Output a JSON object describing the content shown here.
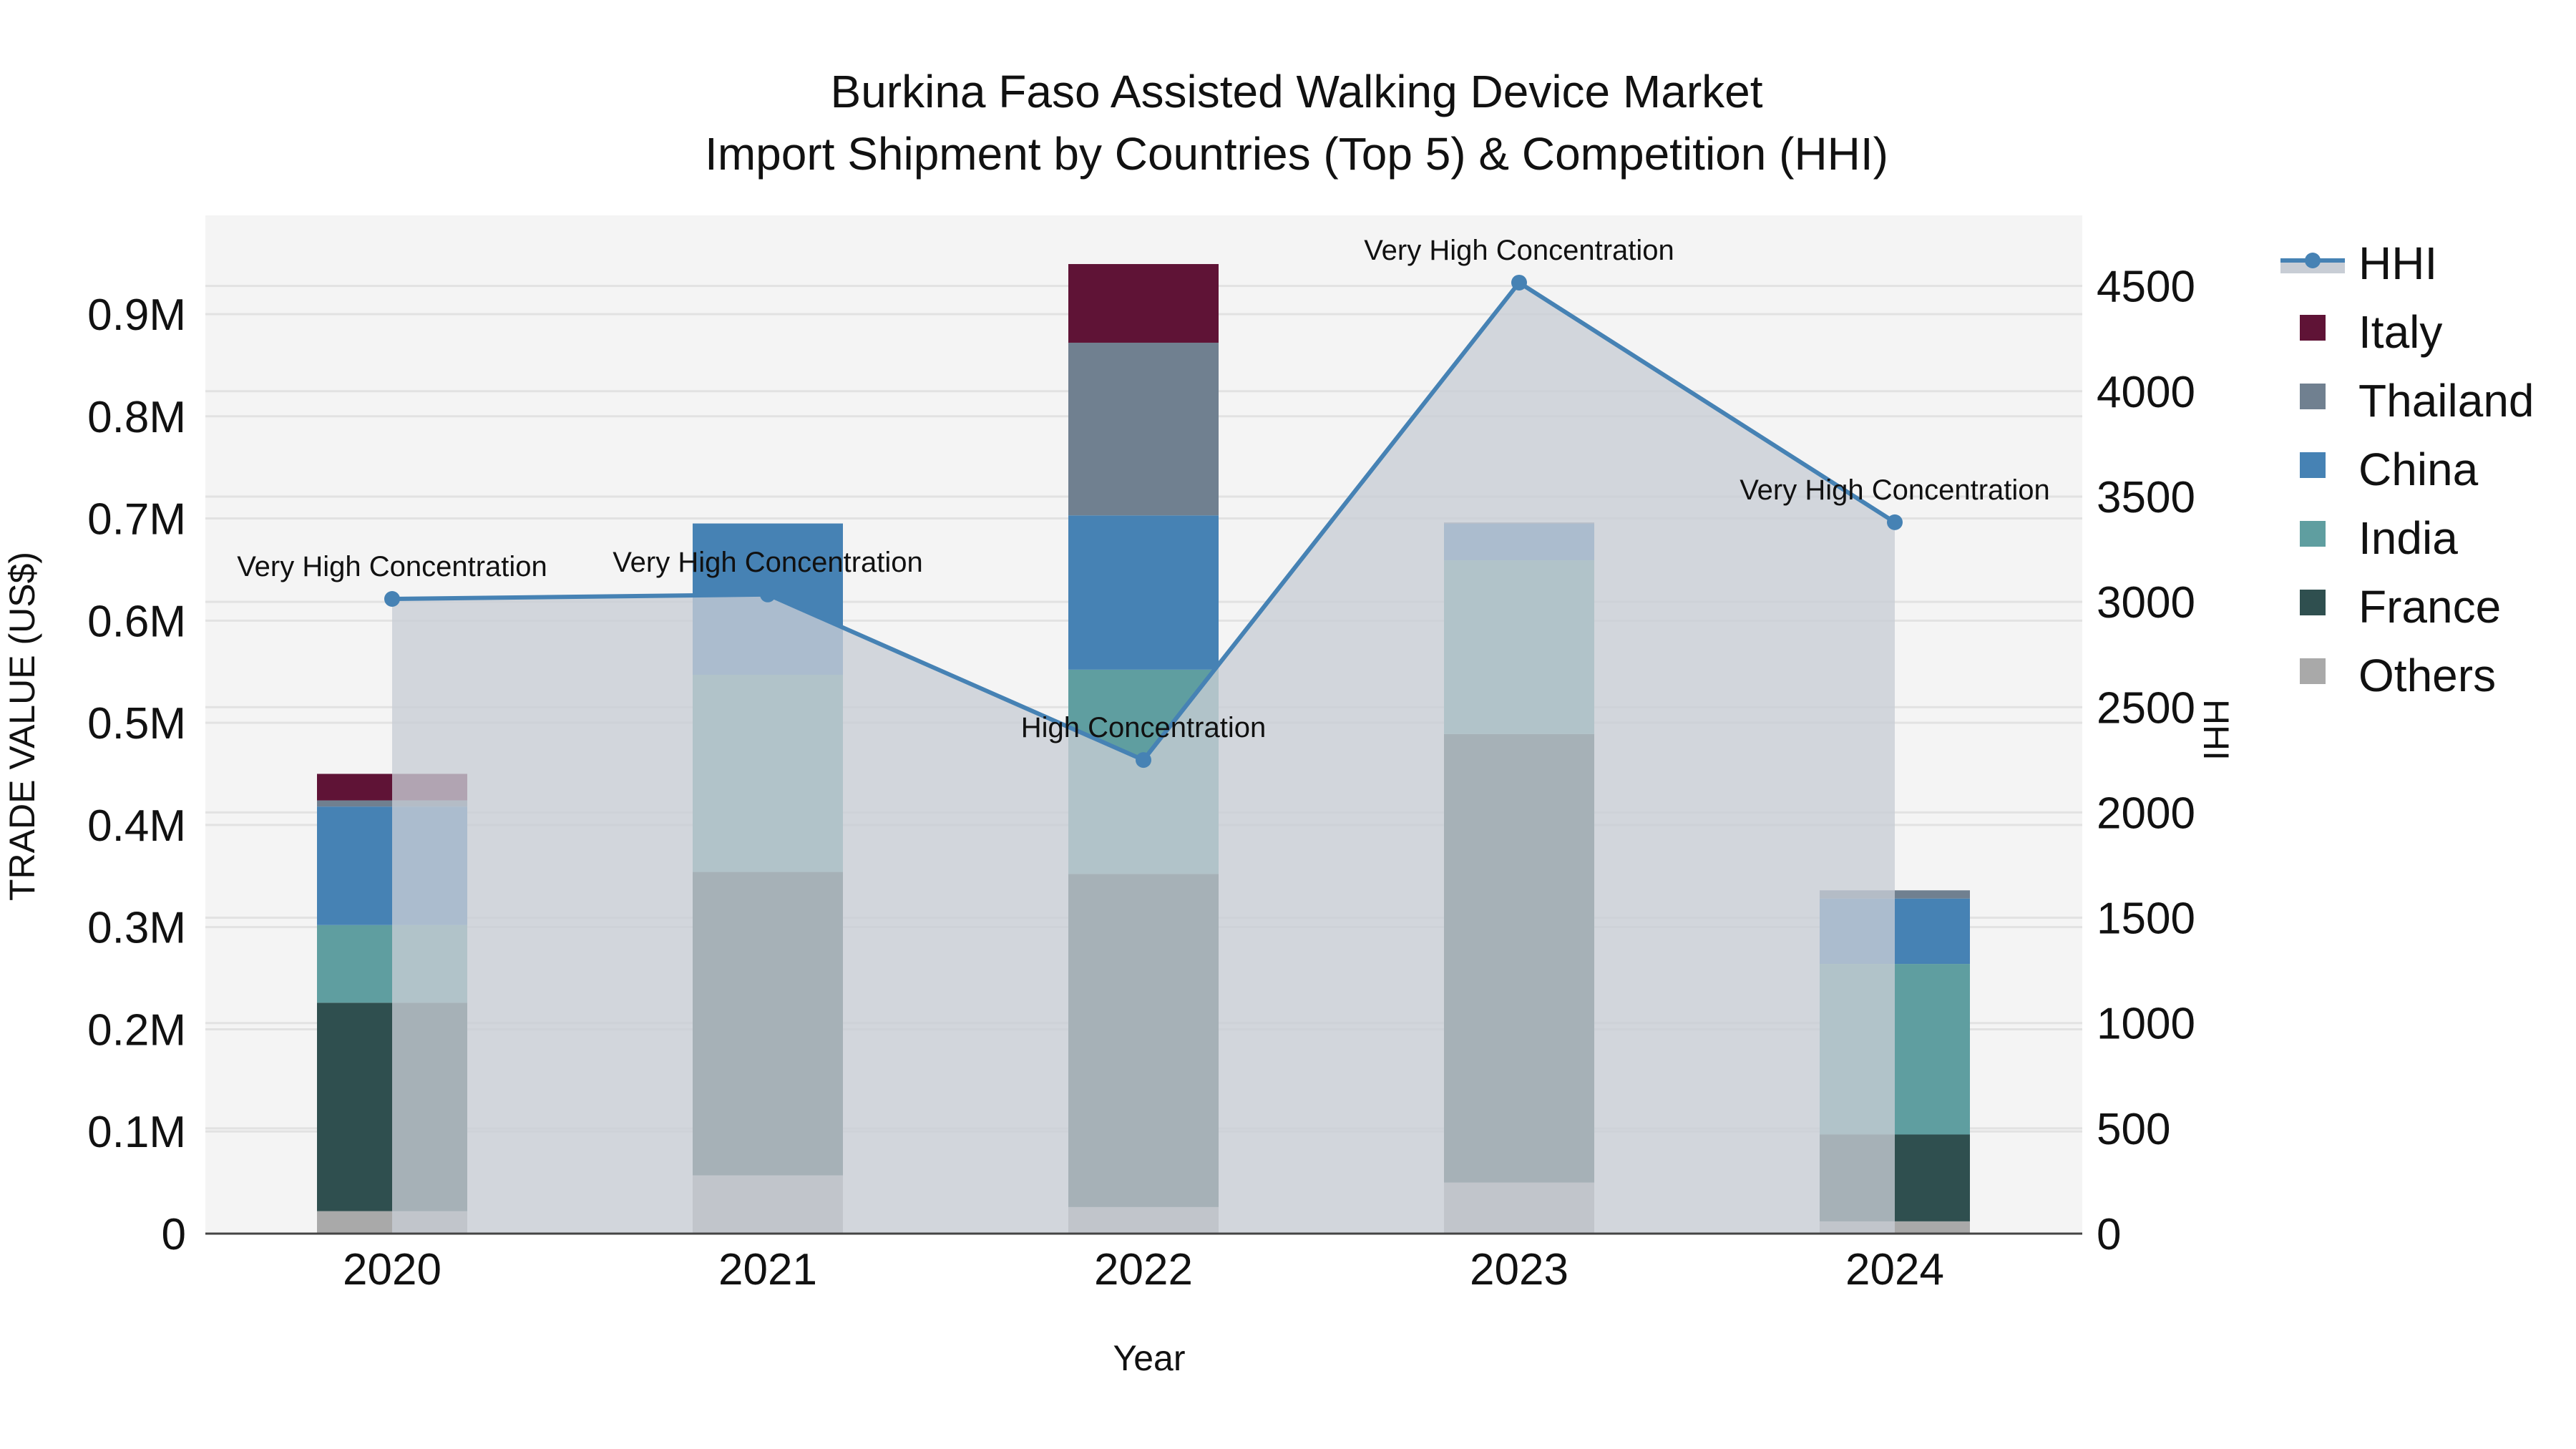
{
  "chart_data": {
    "type": "bar",
    "stacked": true,
    "title": "Burkina Faso Assisted Walking Device Market",
    "subtitle": "Import Shipment by Countries (Top 5) & Competition (HHI)",
    "xlabel": "Year",
    "ylabel": "TRADE VALUE (US$)",
    "y2label": "HHI",
    "categories": [
      "2020",
      "2021",
      "2022",
      "2023",
      "2024"
    ],
    "ylim": [
      0,
      0.99
    ],
    "y_ticks": [
      0,
      0.1,
      0.2,
      0.3,
      0.4,
      0.5,
      0.6,
      0.7,
      0.8,
      0.9
    ],
    "y_tick_labels": [
      "0",
      "0.1M",
      "0.2M",
      "0.3M",
      "0.4M",
      "0.5M",
      "0.6M",
      "0.7M",
      "0.8M",
      "0.9M"
    ],
    "y2lim": [
      0,
      4840
    ],
    "y2_ticks": [
      0,
      500,
      1000,
      1500,
      2000,
      2500,
      3000,
      3500,
      4000,
      4500
    ],
    "y2_tick_labels": [
      "0",
      "500",
      "1000",
      "1500",
      "2000",
      "2500",
      "3000",
      "3500",
      "4000",
      "4500"
    ],
    "units": "US$ millions",
    "series": [
      {
        "name": "Others",
        "color": "#a9a9a9",
        "values": [
          0.022,
          0.057,
          0.026,
          0.05,
          0.012
        ]
      },
      {
        "name": "France",
        "color": "#2f4f4f",
        "values": [
          0.204,
          0.297,
          0.326,
          0.439,
          0.085
        ]
      },
      {
        "name": "India",
        "color": "#5f9ea0",
        "values": [
          0.076,
          0.193,
          0.2,
          0.17,
          0.167
        ]
      },
      {
        "name": "China",
        "color": "#4682b4",
        "values": [
          0.116,
          0.148,
          0.151,
          0.036,
          0.064
        ]
      },
      {
        "name": "Thailand",
        "color": "#708090",
        "values": [
          0.006,
          0.0,
          0.169,
          0.001,
          0.008
        ]
      },
      {
        "name": "Italy",
        "color": "#5f1336",
        "values": [
          0.026,
          0.0,
          0.077,
          0.0,
          0.0
        ]
      }
    ],
    "hhi": {
      "name": "HHI",
      "axis": "y2",
      "color": "#4682b4",
      "fill_color": "#c8cdd5",
      "values": [
        3014,
        3035,
        2249,
        4516,
        3378
      ],
      "annotations": [
        "Very High Concentration",
        "Very High Concentration",
        "High Concentration",
        "Very High Concentration",
        "Very High Concentration"
      ]
    },
    "legend": {
      "position": "right",
      "items": [
        "HHI",
        "Italy",
        "Thailand",
        "China",
        "India",
        "France",
        "Others"
      ]
    },
    "grid": true,
    "plot_bgcolor": "#f4f4f4"
  }
}
